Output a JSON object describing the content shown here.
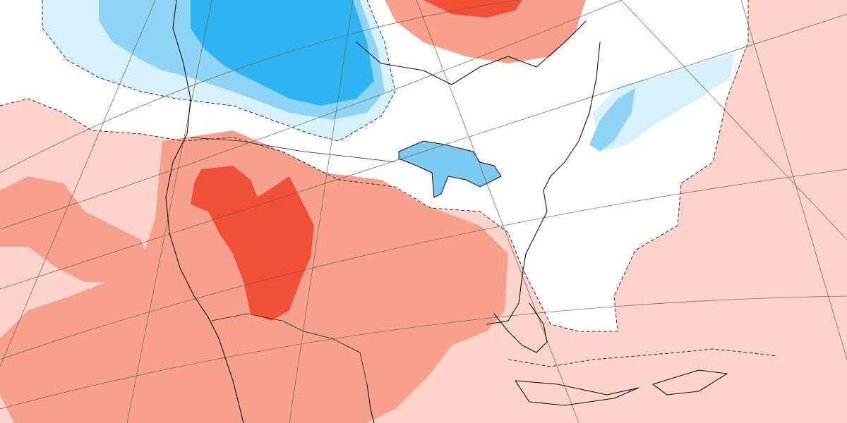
{
  "map": {
    "projection": "polar-stereographic",
    "region": "North America",
    "legend": "none",
    "colors": {
      "background_near_zero": "#ffffff",
      "warm_weak": "#fdd3cb",
      "warm_moderate": "#f6a08d",
      "warm_strong": "#f25036",
      "warm_extreme": "#ee3a1f",
      "cold_weak": "#d6f0fc",
      "cold_moderate": "#8fd3f5",
      "cold_strong": "#2fb4f3",
      "lakes_cold": "#7ccaf2",
      "coastline": "#111111",
      "graticule": "#6b5d4a"
    },
    "icons": [
      "graticule-lines",
      "coastlines",
      "state-borders",
      "zero-anomaly-dashed-contour"
    ]
  }
}
